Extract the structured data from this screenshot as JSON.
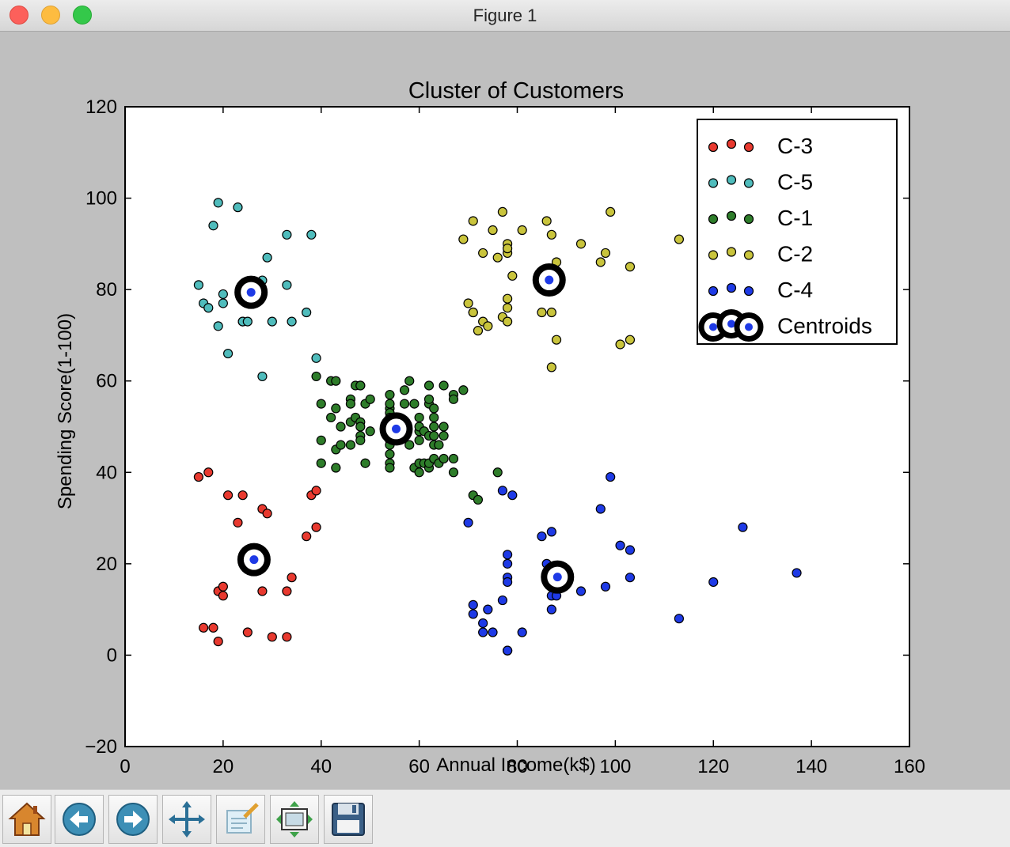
{
  "window": {
    "title": "Figure 1"
  },
  "toolbar": {
    "buttons": [
      {
        "name": "home",
        "icon": "home-icon"
      },
      {
        "name": "back",
        "icon": "back-arrow-icon"
      },
      {
        "name": "forward",
        "icon": "forward-arrow-icon"
      },
      {
        "name": "pan",
        "icon": "pan-move-icon"
      },
      {
        "name": "zoom",
        "icon": "zoom-rect-icon"
      },
      {
        "name": "subplots",
        "icon": "subplots-config-icon"
      },
      {
        "name": "save",
        "icon": "floppy-save-icon"
      }
    ]
  },
  "chart_data": {
    "type": "scatter",
    "title": "Cluster of Customers",
    "xlabel": "Annual Income(k$)",
    "ylabel": "Spending Score(1-100)",
    "xlim": [
      0,
      160
    ],
    "ylim": [
      -20,
      120
    ],
    "xticks": [
      0,
      20,
      40,
      60,
      80,
      100,
      120,
      140,
      160
    ],
    "yticks": [
      -20,
      0,
      20,
      40,
      60,
      80,
      100,
      120
    ],
    "grid": false,
    "legend_position": "top-right",
    "series": [
      {
        "name": "C-3",
        "color": "#e8392f",
        "points": [
          [
            15,
            39
          ],
          [
            16,
            6
          ],
          [
            17,
            40
          ],
          [
            18,
            6
          ],
          [
            19,
            3
          ],
          [
            19,
            14
          ],
          [
            20,
            15
          ],
          [
            20,
            13
          ],
          [
            21,
            35
          ],
          [
            23,
            29
          ],
          [
            24,
            35
          ],
          [
            25,
            5
          ],
          [
            28,
            32
          ],
          [
            28,
            14
          ],
          [
            29,
            31
          ],
          [
            30,
            4
          ],
          [
            33,
            4
          ],
          [
            33,
            14
          ],
          [
            34,
            17
          ],
          [
            37,
            26
          ],
          [
            38,
            35
          ],
          [
            39,
            36
          ],
          [
            39,
            28
          ]
        ]
      },
      {
        "name": "C-5",
        "color": "#4fbcbc",
        "points": [
          [
            15,
            81
          ],
          [
            16,
            77
          ],
          [
            17,
            76
          ],
          [
            18,
            94
          ],
          [
            19,
            99
          ],
          [
            19,
            72
          ],
          [
            20,
            77
          ],
          [
            20,
            79
          ],
          [
            21,
            66
          ],
          [
            23,
            98
          ],
          [
            24,
            73
          ],
          [
            24,
            73
          ],
          [
            25,
            73
          ],
          [
            28,
            82
          ],
          [
            28,
            61
          ],
          [
            29,
            87
          ],
          [
            30,
            73
          ],
          [
            33,
            92
          ],
          [
            33,
            81
          ],
          [
            34,
            73
          ],
          [
            37,
            75
          ],
          [
            38,
            92
          ],
          [
            39,
            65
          ]
        ]
      },
      {
        "name": "C-1",
        "color": "#2e7d2a",
        "points": [
          [
            39,
            61
          ],
          [
            40,
            47
          ],
          [
            40,
            55
          ],
          [
            40,
            42
          ],
          [
            42,
            52
          ],
          [
            42,
            60
          ],
          [
            43,
            54
          ],
          [
            43,
            60
          ],
          [
            43,
            45
          ],
          [
            43,
            41
          ],
          [
            44,
            50
          ],
          [
            44,
            46
          ],
          [
            46,
            51
          ],
          [
            46,
            46
          ],
          [
            46,
            56
          ],
          [
            46,
            55
          ],
          [
            47,
            52
          ],
          [
            47,
            59
          ],
          [
            48,
            51
          ],
          [
            48,
            59
          ],
          [
            48,
            50
          ],
          [
            48,
            48
          ],
          [
            48,
            59
          ],
          [
            48,
            47
          ],
          [
            49,
            55
          ],
          [
            49,
            42
          ],
          [
            50,
            49
          ],
          [
            50,
            56
          ],
          [
            54,
            47
          ],
          [
            54,
            54
          ],
          [
            54,
            53
          ],
          [
            54,
            48
          ],
          [
            54,
            52
          ],
          [
            54,
            42
          ],
          [
            54,
            51
          ],
          [
            54,
            55
          ],
          [
            54,
            41
          ],
          [
            54,
            44
          ],
          [
            54,
            57
          ],
          [
            54,
            46
          ],
          [
            57,
            58
          ],
          [
            57,
            55
          ],
          [
            58,
            60
          ],
          [
            58,
            46
          ],
          [
            59,
            55
          ],
          [
            59,
            41
          ],
          [
            60,
            49
          ],
          [
            60,
            40
          ],
          [
            60,
            42
          ],
          [
            60,
            52
          ],
          [
            60,
            47
          ],
          [
            60,
            50
          ],
          [
            61,
            42
          ],
          [
            61,
            49
          ],
          [
            62,
            41
          ],
          [
            62,
            48
          ],
          [
            62,
            59
          ],
          [
            62,
            55
          ],
          [
            62,
            56
          ],
          [
            62,
            42
          ],
          [
            63,
            50
          ],
          [
            63,
            46
          ],
          [
            63,
            43
          ],
          [
            63,
            48
          ],
          [
            63,
            52
          ],
          [
            63,
            54
          ],
          [
            64,
            42
          ],
          [
            64,
            46
          ],
          [
            65,
            48
          ],
          [
            65,
            50
          ],
          [
            65,
            43
          ],
          [
            65,
            59
          ],
          [
            67,
            43
          ],
          [
            67,
            57
          ],
          [
            67,
            56
          ],
          [
            67,
            40
          ],
          [
            69,
            58
          ],
          [
            71,
            35
          ],
          [
            72,
            34
          ],
          [
            76,
            40
          ]
        ]
      },
      {
        "name": "C-2",
        "color": "#c9c43c",
        "points": [
          [
            69,
            91
          ],
          [
            70,
            77
          ],
          [
            71,
            95
          ],
          [
            71,
            75
          ],
          [
            71,
            75
          ],
          [
            72,
            71
          ],
          [
            73,
            88
          ],
          [
            73,
            73
          ],
          [
            74,
            72
          ],
          [
            75,
            93
          ],
          [
            76,
            87
          ],
          [
            77,
            97
          ],
          [
            77,
            74
          ],
          [
            78,
            90
          ],
          [
            78,
            88
          ],
          [
            78,
            76
          ],
          [
            78,
            89
          ],
          [
            78,
            78
          ],
          [
            78,
            73
          ],
          [
            79,
            83
          ],
          [
            81,
            93
          ],
          [
            85,
            75
          ],
          [
            86,
            95
          ],
          [
            87,
            63
          ],
          [
            87,
            75
          ],
          [
            87,
            92
          ],
          [
            88,
            86
          ],
          [
            88,
            69
          ],
          [
            93,
            90
          ],
          [
            97,
            86
          ],
          [
            98,
            88
          ],
          [
            99,
            97
          ],
          [
            101,
            68
          ],
          [
            103,
            85
          ],
          [
            103,
            69
          ],
          [
            113,
            91
          ]
        ]
      },
      {
        "name": "C-4",
        "color": "#1e3ae6",
        "points": [
          [
            70,
            29
          ],
          [
            71,
            11
          ],
          [
            71,
            9
          ],
          [
            73,
            5
          ],
          [
            73,
            7
          ],
          [
            74,
            10
          ],
          [
            75,
            5
          ],
          [
            77,
            12
          ],
          [
            77,
            36
          ],
          [
            78,
            22
          ],
          [
            78,
            17
          ],
          [
            78,
            20
          ],
          [
            78,
            16
          ],
          [
            78,
            1
          ],
          [
            78,
            1
          ],
          [
            79,
            35
          ],
          [
            81,
            5
          ],
          [
            85,
            26
          ],
          [
            86,
            20
          ],
          [
            87,
            27
          ],
          [
            87,
            13
          ],
          [
            87,
            10
          ],
          [
            88,
            13
          ],
          [
            88,
            15
          ],
          [
            93,
            14
          ],
          [
            97,
            32
          ],
          [
            98,
            15
          ],
          [
            99,
            39
          ],
          [
            101,
            24
          ],
          [
            103,
            17
          ],
          [
            103,
            23
          ],
          [
            113,
            8
          ],
          [
            120,
            16
          ],
          [
            126,
            28
          ],
          [
            137,
            18
          ]
        ]
      }
    ],
    "centroids": {
      "name": "Centroids",
      "ring_color": "#000000",
      "dot_color": "#1e3ae6",
      "points": [
        [
          26.3,
          20.9
        ],
        [
          25.7,
          79.4
        ],
        [
          55.3,
          49.5
        ],
        [
          86.5,
          82.1
        ],
        [
          88.2,
          17.1
        ]
      ]
    }
  }
}
